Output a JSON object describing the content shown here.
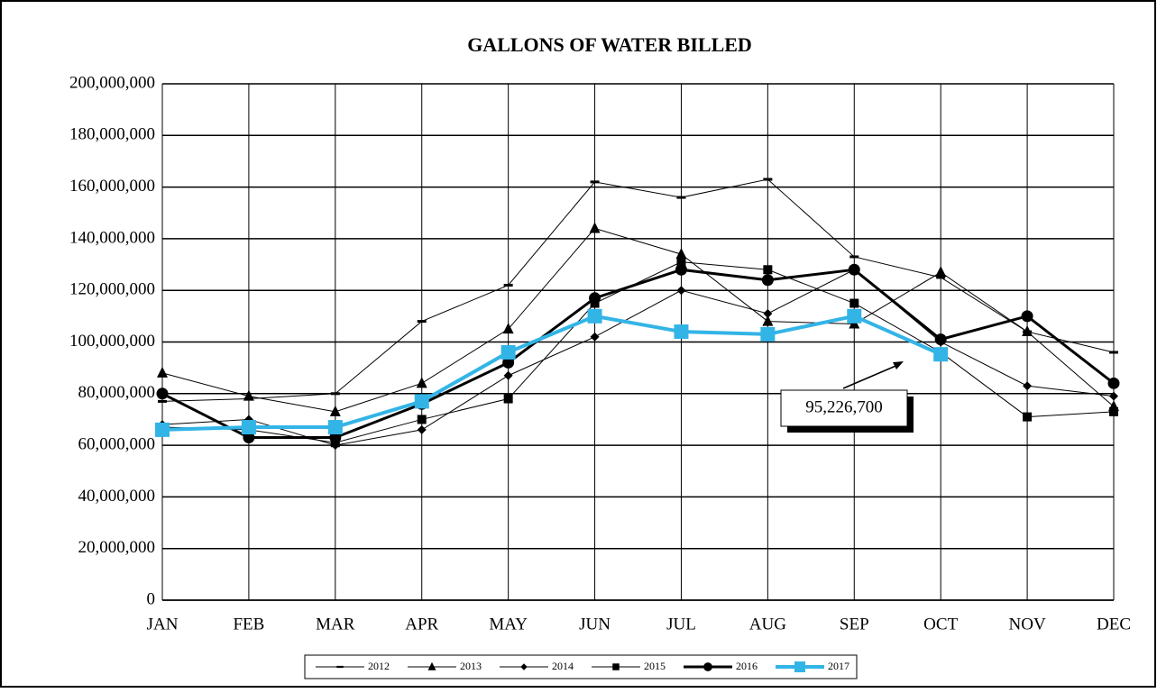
{
  "chart_data": {
    "type": "line",
    "title": "GALLONS OF WATER BILLED",
    "categories": [
      "JAN",
      "FEB",
      "MAR",
      "APR",
      "MAY",
      "JUN",
      "JUL",
      "AUG",
      "SEP",
      "OCT",
      "NOV",
      "DEC"
    ],
    "series": [
      {
        "name": "2012",
        "color": "#000000",
        "marker": "dash",
        "line_width": 1,
        "values": [
          77000000,
          78000000,
          80000000,
          108000000,
          122000000,
          162000000,
          156000000,
          163000000,
          133000000,
          125000000,
          104000000,
          96000000
        ]
      },
      {
        "name": "2013",
        "color": "#000000",
        "marker": "triangle",
        "line_width": 1,
        "values": [
          88000000,
          79000000,
          73000000,
          84000000,
          105000000,
          144000000,
          134000000,
          108000000,
          107000000,
          127000000,
          104000000,
          75000000
        ]
      },
      {
        "name": "2014",
        "color": "#000000",
        "marker": "diamond",
        "line_width": 1,
        "values": [
          68000000,
          70000000,
          60000000,
          66000000,
          87000000,
          102000000,
          120000000,
          111000000,
          128000000,
          100000000,
          83000000,
          79000000
        ]
      },
      {
        "name": "2015",
        "color": "#000000",
        "marker": "square",
        "line_width": 1,
        "values": [
          67000000,
          66000000,
          61000000,
          70000000,
          78000000,
          115000000,
          131000000,
          128000000,
          115000000,
          96000000,
          71000000,
          73000000
        ]
      },
      {
        "name": "2016",
        "color": "#000000",
        "marker": "circle",
        "line_width": 3,
        "values": [
          80000000,
          63000000,
          63000000,
          76000000,
          92000000,
          117000000,
          128000000,
          124000000,
          128000000,
          101000000,
          110000000,
          84000000
        ]
      },
      {
        "name": "2017",
        "color": "#33b4e6",
        "marker": "bigsquare",
        "line_width": 4,
        "values": [
          66000000,
          67000000,
          67000000,
          77000000,
          96000000,
          110000000,
          104000000,
          103000000,
          110000000,
          95226700,
          null,
          null
        ]
      }
    ],
    "annotations": [
      "95,226,700"
    ],
    "ylim": [
      0,
      200000000
    ],
    "yticks": [
      0,
      {
        "value": 20000000,
        "label": "20,000,000"
      },
      {
        "value": 40000000,
        "label": "40,000,000"
      },
      {
        "value": 60000000,
        "label": "60,000,000"
      },
      {
        "value": 80000000,
        "label": "80,000,000"
      },
      {
        "value": 100000000,
        "label": "100,000,000"
      },
      {
        "value": 120000000,
        "label": "120,000,000"
      },
      {
        "value": 140000000,
        "label": "140,000,000"
      },
      {
        "value": 160000000,
        "label": "160,000,000"
      },
      {
        "value": 180000000,
        "label": "180,000,000"
      },
      {
        "value": 200000000,
        "label": "200,000,000"
      }
    ],
    "grid": true,
    "legend": "bottom"
  }
}
